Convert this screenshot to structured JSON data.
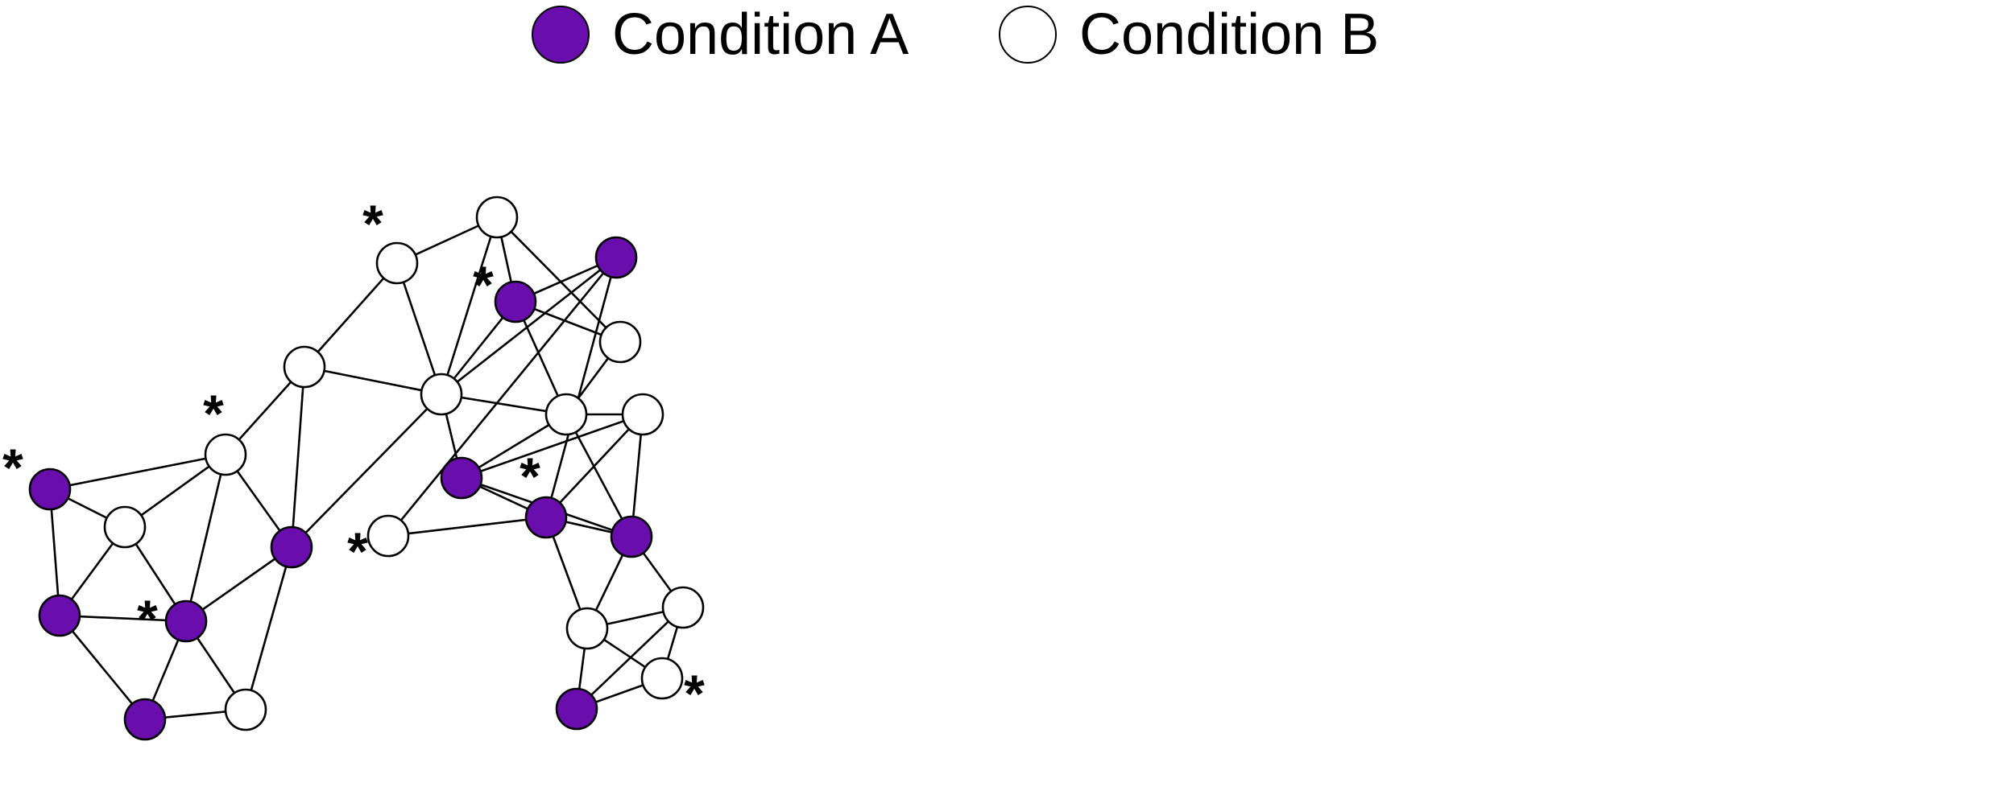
{
  "legend": {
    "condition_a_label": "Condition A",
    "condition_b_label": "Condition B",
    "condition_a_color": "#6a0dad",
    "condition_b_color": "#ffffff"
  },
  "graph": {
    "marker": "*",
    "nodes": [
      {
        "id": 1,
        "condition": "A",
        "marked": true
      },
      {
        "id": 2,
        "condition": "B",
        "marked": false
      },
      {
        "id": 3,
        "condition": "A",
        "marked": false
      },
      {
        "id": 4,
        "condition": "A",
        "marked": true
      },
      {
        "id": 5,
        "condition": "A",
        "marked": false
      },
      {
        "id": 6,
        "condition": "B",
        "marked": false
      },
      {
        "id": 7,
        "condition": "B",
        "marked": true
      },
      {
        "id": 8,
        "condition": "A",
        "marked": false
      },
      {
        "id": 9,
        "condition": "B",
        "marked": false
      },
      {
        "id": 10,
        "condition": "B",
        "marked": true
      },
      {
        "id": 11,
        "condition": "B",
        "marked": false
      },
      {
        "id": 12,
        "condition": "B",
        "marked": false
      },
      {
        "id": 13,
        "condition": "A",
        "marked": true
      },
      {
        "id": 14,
        "condition": "A",
        "marked": false
      },
      {
        "id": 15,
        "condition": "B",
        "marked": false
      },
      {
        "id": 16,
        "condition": "A",
        "marked": false
      },
      {
        "id": 17,
        "condition": "B",
        "marked": false
      },
      {
        "id": 18,
        "condition": "B",
        "marked": false
      },
      {
        "id": 19,
        "condition": "B",
        "marked": true
      },
      {
        "id": 20,
        "condition": "A",
        "marked": true
      },
      {
        "id": 21,
        "condition": "A",
        "marked": false
      },
      {
        "id": 22,
        "condition": "B",
        "marked": false
      },
      {
        "id": 23,
        "condition": "B",
        "marked": false
      },
      {
        "id": 24,
        "condition": "B",
        "marked": true
      },
      {
        "id": 25,
        "condition": "A",
        "marked": false
      }
    ],
    "edges": [
      [
        1,
        2
      ],
      [
        1,
        3
      ],
      [
        1,
        7
      ],
      [
        2,
        3
      ],
      [
        2,
        4
      ],
      [
        2,
        7
      ],
      [
        3,
        4
      ],
      [
        3,
        5
      ],
      [
        4,
        5
      ],
      [
        4,
        6
      ],
      [
        4,
        7
      ],
      [
        4,
        8
      ],
      [
        5,
        6
      ],
      [
        6,
        8
      ],
      [
        7,
        8
      ],
      [
        7,
        9
      ],
      [
        8,
        9
      ],
      [
        8,
        11
      ],
      [
        9,
        10
      ],
      [
        9,
        11
      ],
      [
        10,
        11
      ],
      [
        10,
        12
      ],
      [
        11,
        12
      ],
      [
        11,
        13
      ],
      [
        11,
        14
      ],
      [
        11,
        15
      ],
      [
        11,
        16
      ],
      [
        12,
        13
      ],
      [
        12,
        17
      ],
      [
        13,
        17
      ],
      [
        13,
        15
      ],
      [
        13,
        16
      ],
      [
        17,
        15
      ],
      [
        15,
        14
      ],
      [
        15,
        18
      ],
      [
        14,
        18
      ],
      [
        14,
        20
      ],
      [
        14,
        21
      ],
      [
        18,
        20
      ],
      [
        18,
        21
      ],
      [
        15,
        21
      ],
      [
        16,
        19
      ],
      [
        16,
        20
      ],
      [
        19,
        20
      ],
      [
        20,
        21
      ],
      [
        20,
        22
      ],
      [
        21,
        22
      ],
      [
        21,
        23
      ],
      [
        22,
        23
      ],
      [
        22,
        24
      ],
      [
        22,
        25
      ],
      [
        23,
        24
      ],
      [
        23,
        25
      ],
      [
        24,
        25
      ]
    ]
  }
}
